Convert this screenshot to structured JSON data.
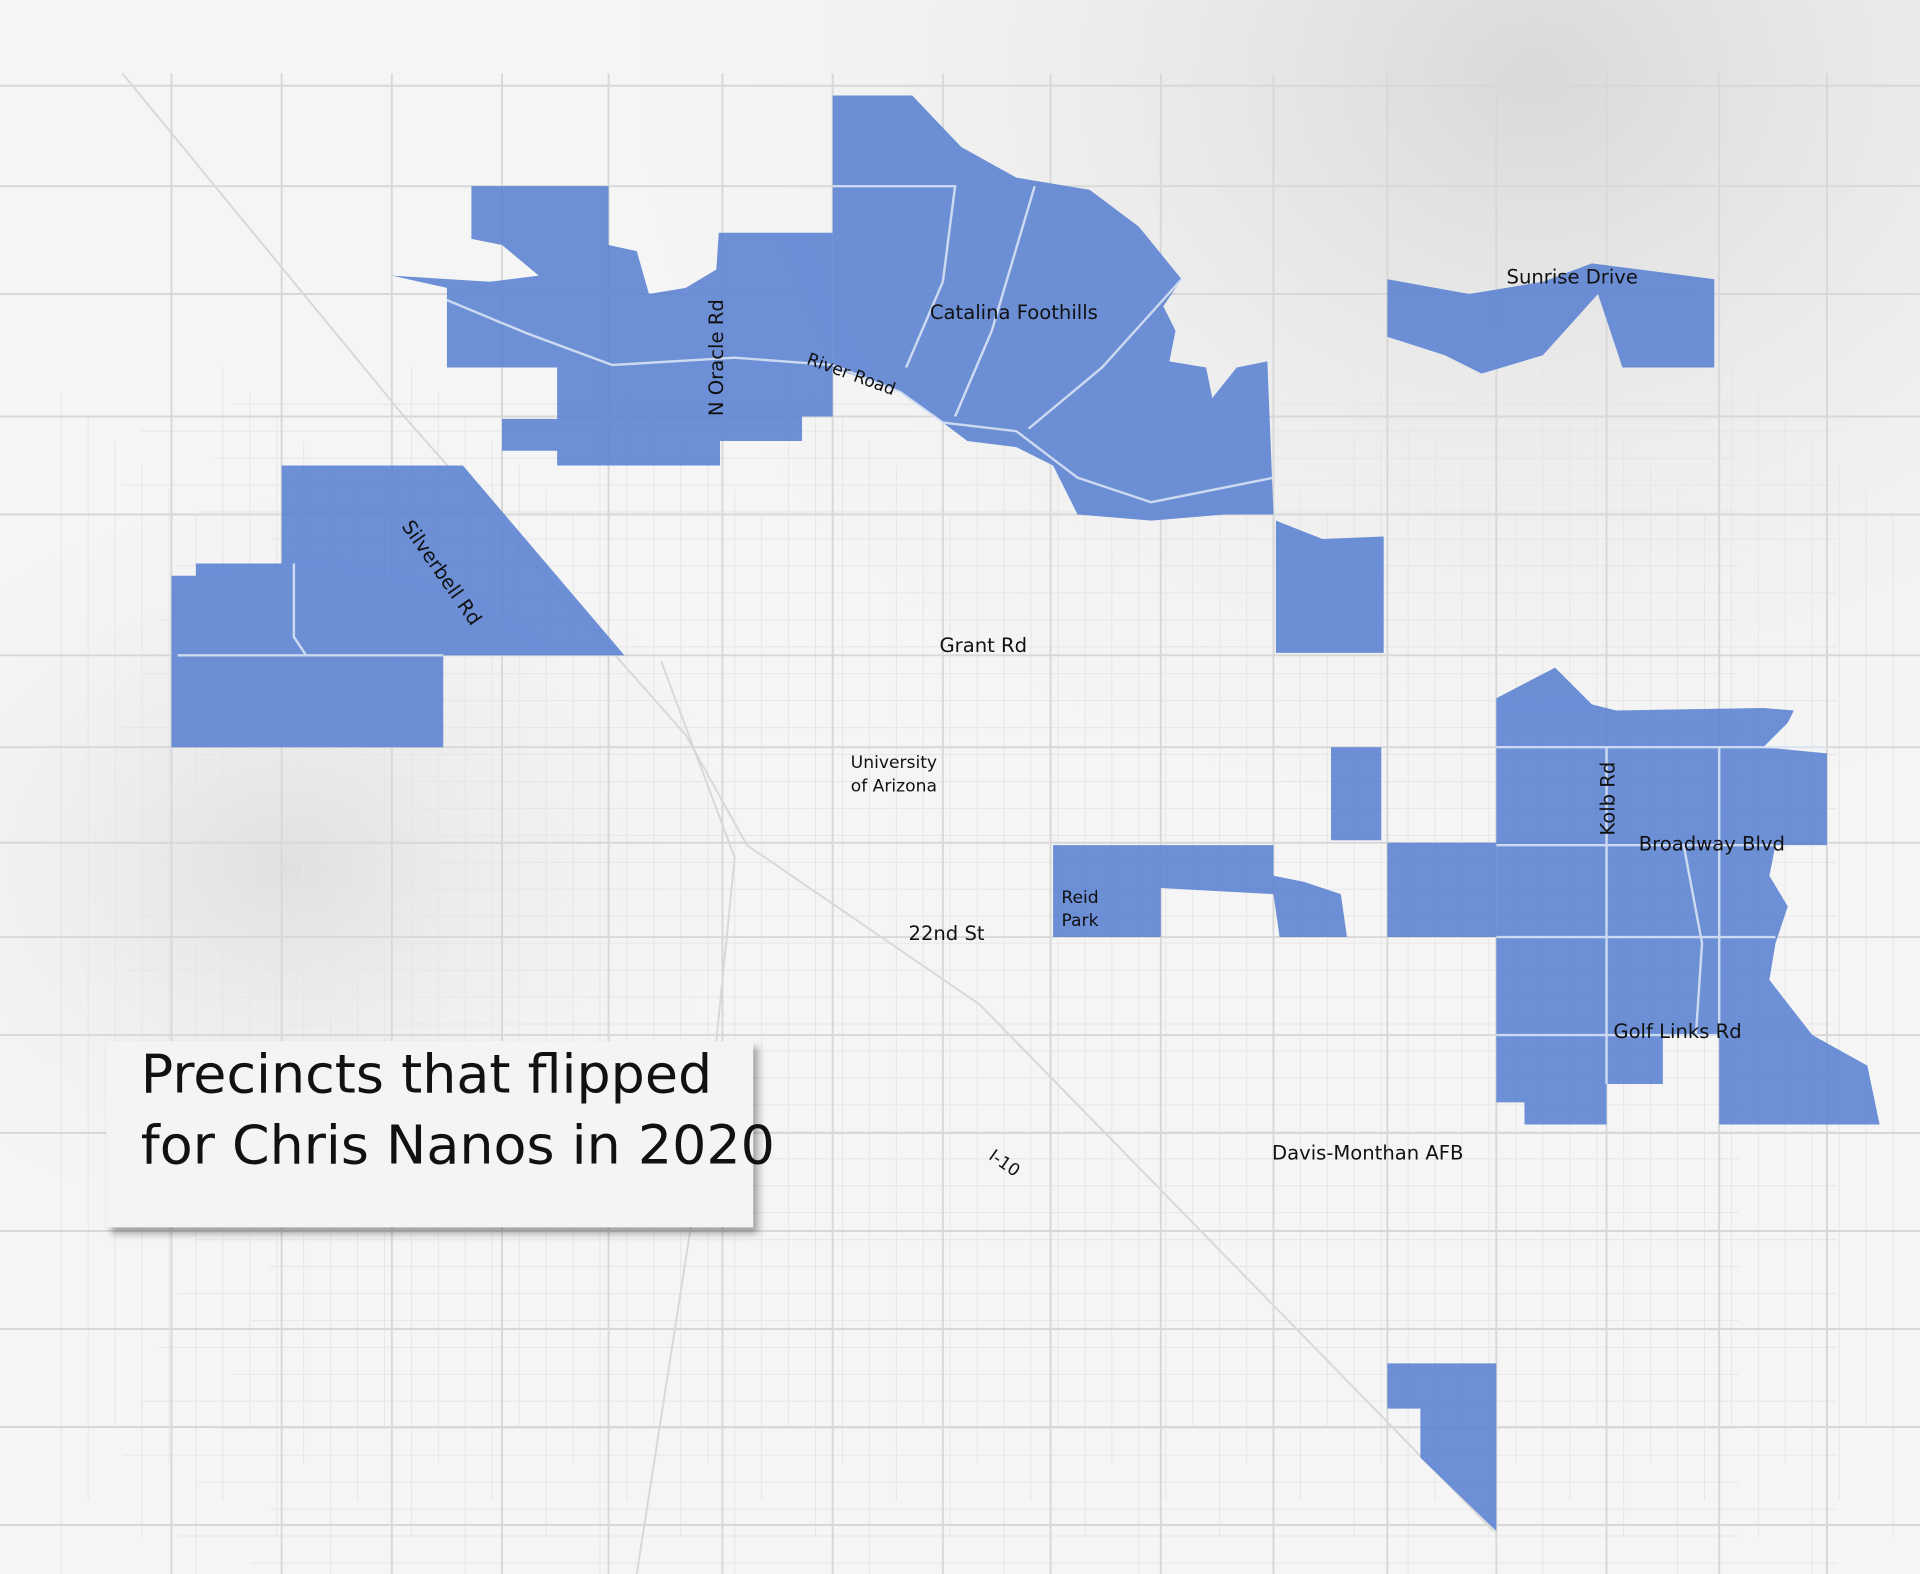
{
  "title": {
    "lines": [
      "Precincts that flipped",
      "for Chris Nanos in 2020"
    ]
  },
  "labels": {
    "sunrise_drive": "Sunrise Drive",
    "catalina_foothills": "Catalina Foothills",
    "oracle_rd": "N Oracle Rd",
    "river_road": "River Road",
    "silverbell_rd": "Silverbell Rd",
    "grant_rd": "Grant Rd",
    "university": [
      "University",
      "of Arizona"
    ],
    "reid_park": [
      "Reid",
      "Park"
    ],
    "st_22nd": "22nd St",
    "kolb_rd": "Kolb Rd",
    "broadway_blvd": "Broadway Blvd",
    "golf_links_rd": "Golf Links Rd",
    "i10": "I-10",
    "davis_monthan": "Davis-Monthan AFB"
  }
}
